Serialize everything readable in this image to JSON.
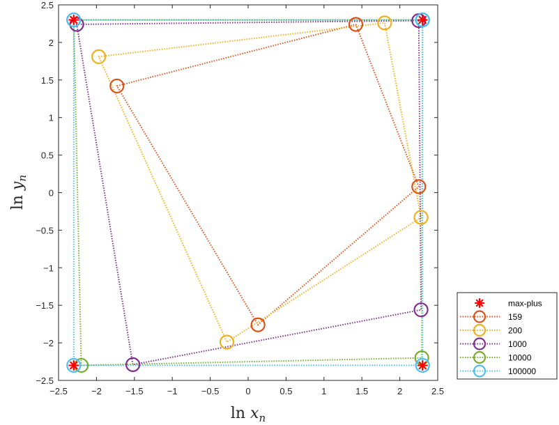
{
  "chart_data": {
    "type": "scatter",
    "title": "",
    "xlabel": "ln x_n",
    "ylabel": "ln y_n",
    "xlim": [
      -2.5,
      2.5
    ],
    "ylim": [
      -2.5,
      2.5
    ],
    "xticks": [
      -2.5,
      -2,
      -1.5,
      -1,
      -0.5,
      0,
      0.5,
      1,
      1.5,
      2,
      2.5
    ],
    "yticks": [
      -2.5,
      -2,
      -1.5,
      -1,
      -0.5,
      0,
      0.5,
      1,
      1.5,
      2,
      2.5
    ],
    "grid": false,
    "legend_position": "outside-bottom-right",
    "series": [
      {
        "name": "max-plus",
        "marker": "asterisk",
        "line": "none",
        "color": "#FF0000",
        "x": [
          -2.3,
          2.3,
          2.3,
          -2.3
        ],
        "y": [
          2.3,
          2.3,
          -2.3,
          -2.3
        ]
      },
      {
        "name": "159",
        "marker": "circle",
        "line": "dotted",
        "color": "#D95319",
        "x": [
          1.42,
          2.25,
          0.13,
          -1.73
        ],
        "y": [
          2.24,
          0.08,
          -1.76,
          1.42
        ]
      },
      {
        "name": "200",
        "marker": "circle",
        "line": "dotted",
        "color": "#EDB120",
        "x": [
          1.8,
          2.28,
          -0.28,
          -1.97
        ],
        "y": [
          2.26,
          -0.33,
          -1.99,
          1.81
        ]
      },
      {
        "name": "1000",
        "marker": "circle",
        "line": "dotted",
        "color": "#7E2F8E",
        "x": [
          2.25,
          2.28,
          -1.52,
          -2.26
        ],
        "y": [
          2.29,
          -1.56,
          -2.29,
          2.24
        ]
      },
      {
        "name": "10000",
        "marker": "circle",
        "line": "dotted",
        "color": "#77AC30",
        "x": [
          2.3,
          2.29,
          -2.2,
          -2.3
        ],
        "y": [
          2.3,
          -2.2,
          -2.3,
          2.3
        ]
      },
      {
        "name": "100000",
        "marker": "circle",
        "line": "dotted",
        "color": "#4DBEEE",
        "x": [
          2.3,
          2.3,
          -2.3,
          -2.3
        ],
        "y": [
          2.3,
          -2.3,
          -2.3,
          2.3
        ]
      }
    ]
  }
}
